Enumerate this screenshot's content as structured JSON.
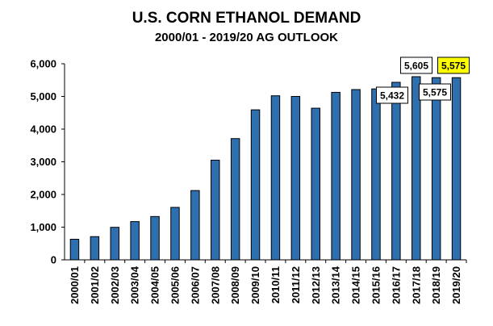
{
  "chart_data": {
    "type": "bar",
    "title": "U.S. CORN ETHANOL DEMAND",
    "subtitle": "2000/01 - 2019/20 AG OUTLOOK",
    "xlabel": "",
    "ylabel": "",
    "ylim": [
      0,
      6000
    ],
    "yticks": [
      0,
      1000,
      2000,
      3000,
      4000,
      5000,
      6000
    ],
    "ytick_labels": [
      "0",
      "1,000",
      "2,000",
      "3,000",
      "4,000",
      "5,000",
      "6,000"
    ],
    "grid": false,
    "categories": [
      "2000/01",
      "2001/02",
      "2002/03",
      "2003/04",
      "2004/05",
      "2005/06",
      "2006/07",
      "2007/08",
      "2008/09",
      "2009/10",
      "2010/11",
      "2011/12",
      "2012/13",
      "2013/14",
      "2014/15",
      "2015/16",
      "2016/17",
      "2017/18",
      "2018/19",
      "2019/20"
    ],
    "values": [
      630,
      710,
      995,
      1170,
      1325,
      1605,
      2120,
      3050,
      3710,
      4590,
      5020,
      5000,
      4640,
      5125,
      5210,
      5230,
      5432,
      5605,
      5575,
      5575
    ],
    "bar_color": "#2e6fb0",
    "annotations": [
      {
        "category": "2016/17",
        "label": "5,432",
        "bg": "#ffffff"
      },
      {
        "category": "2017/18",
        "label": "5,605",
        "bg": "#ffffff"
      },
      {
        "category": "2018/19",
        "label": "5,575",
        "bg": "#ffffff"
      },
      {
        "category": "2019/20",
        "label": "5,575",
        "bg": "#ffff00"
      }
    ]
  }
}
